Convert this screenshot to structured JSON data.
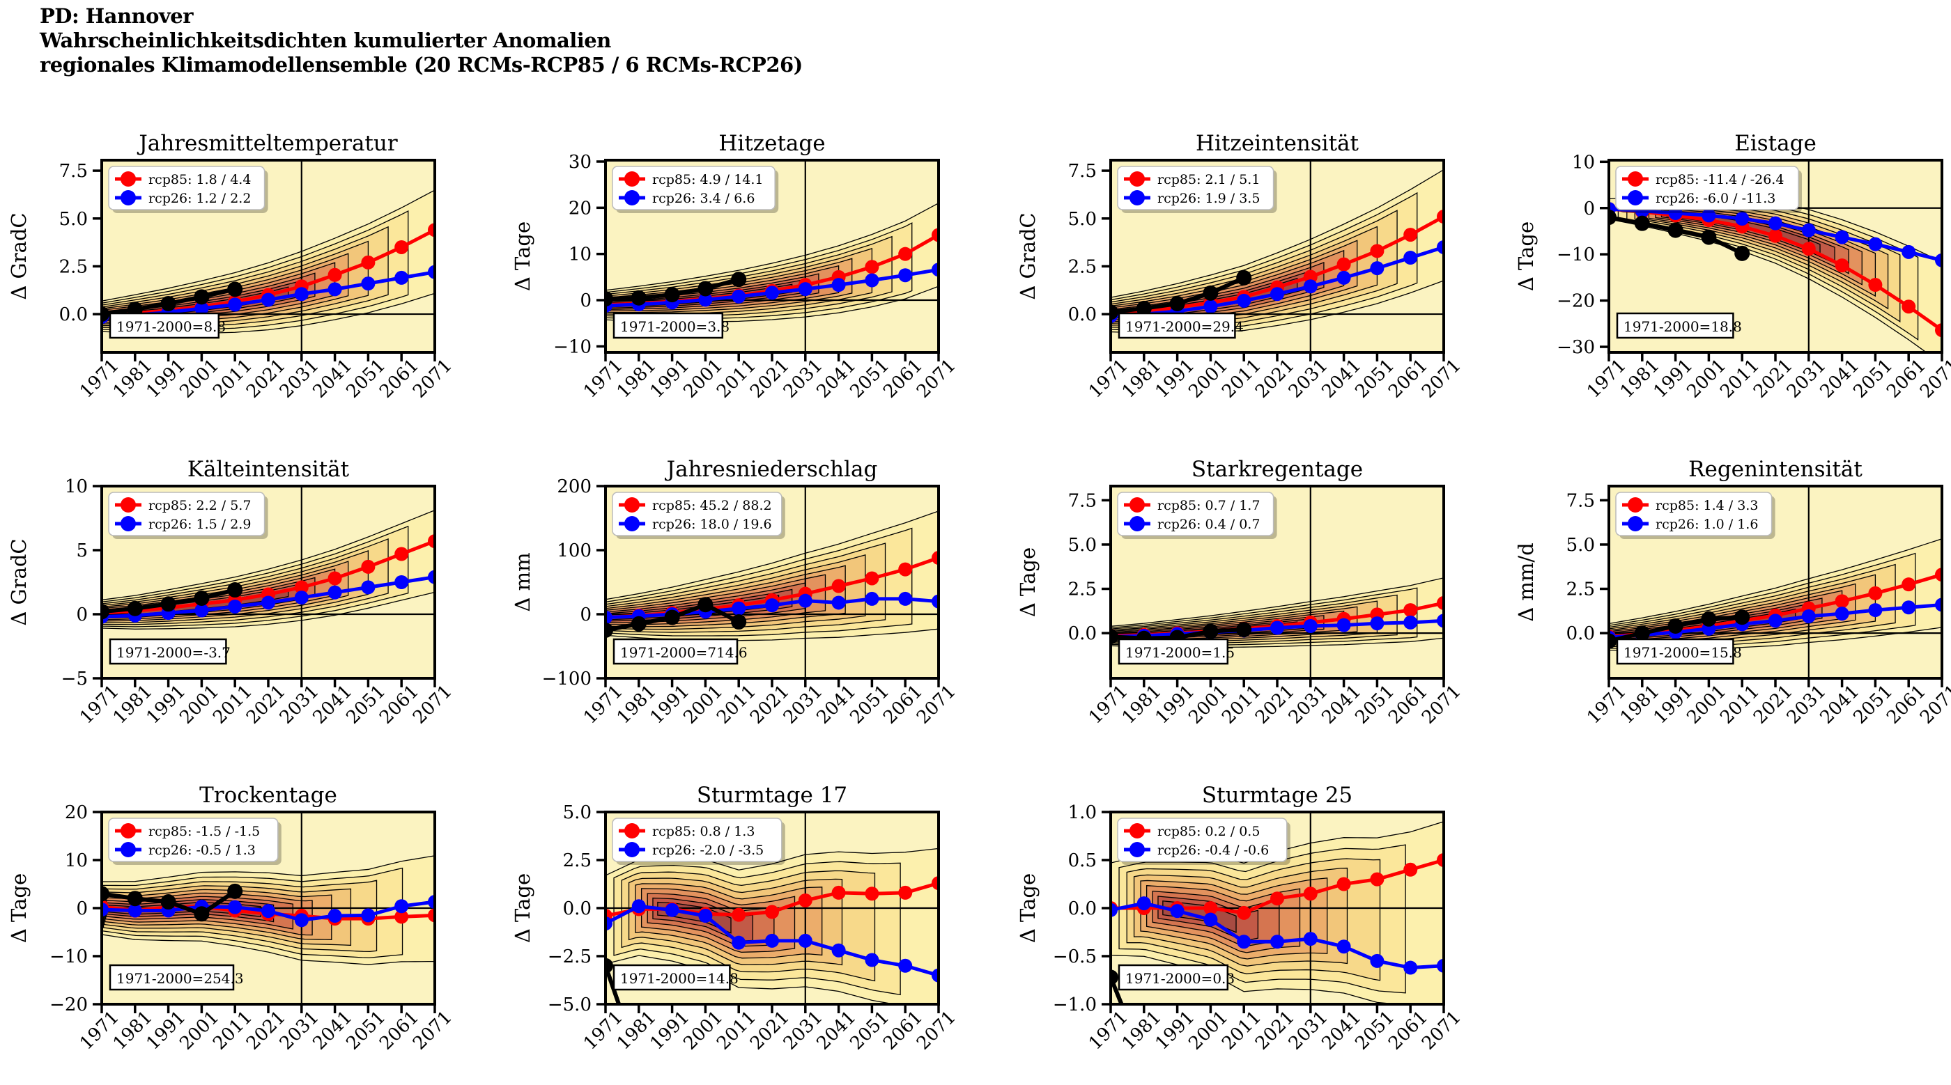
{
  "header": {
    "line1": "PD: Hannover",
    "line2": "Wahrscheinlichkeitsdichten kumulierter Anomalien",
    "line3": "regionales Klimamodellensemble (20 RCMs-RCP85 / 6 RCMs-RCP26)"
  },
  "style": {
    "rcp85_color": "#ff0000",
    "rcp26_color": "#0000ff",
    "historical_color": "#000000",
    "plot_bg": "#fbf3c1",
    "contour_fills": [
      "#fcf0ad",
      "#fbe79b",
      "#f7d98a",
      "#f2c67a",
      "#ecad6b",
      "#e3925e",
      "#d57550",
      "#c25a47",
      "#a84b42"
    ],
    "contour_scales": [
      1,
      0.86,
      0.73,
      0.61,
      0.5,
      0.4,
      0.3,
      0.21,
      0.13
    ]
  },
  "axis": {
    "x_ticks": [
      1971,
      1981,
      1991,
      2001,
      2011,
      2021,
      2031,
      2041,
      2051,
      2061,
      2071
    ],
    "x_range": [
      1971,
      2071
    ],
    "vline_year": 2031,
    "hline_value": 0
  },
  "chart_data": [
    {
      "type": "contour-density + line",
      "title": "Jahresmitteltemperatur",
      "ylabel": "Δ GradC",
      "ylim": [
        -2.0,
        8.05
      ],
      "yticks": [
        0.0,
        2.5,
        5.0,
        7.5
      ],
      "ytick_labels": [
        "0.0",
        "2.5",
        "5.0",
        "7.5"
      ],
      "legend": {
        "rcp85": "rcp85: 1.8 / 4.4",
        "rcp26": "rcp26: 1.2 / 2.2"
      },
      "ref_label": "1971-2000=8.8",
      "series": {
        "rcp85": {
          "y": [
            -0.1,
            0.05,
            0.2,
            0.4,
            0.65,
            1.0,
            1.45,
            2.05,
            2.7,
            3.5,
            4.4
          ]
        },
        "rcp26": {
          "y": [
            -0.15,
            -0.05,
            0.1,
            0.3,
            0.5,
            0.75,
            1.05,
            1.3,
            1.6,
            1.9,
            2.2
          ]
        },
        "historical": {
          "x": [
            1971,
            1981,
            1991,
            2001,
            2011
          ],
          "y": [
            0.0,
            0.25,
            0.55,
            0.9,
            1.3
          ]
        }
      },
      "density": {
        "w0": 0.8,
        "w1": 2.7,
        "startSpread": 0,
        "endK": 0.5,
        "weight": 0.72
      }
    },
    {
      "type": "contour-density + line",
      "title": "Hitzetage",
      "ylabel": "Δ Tage",
      "ylim": [
        -11.3,
        30.3
      ],
      "yticks": [
        -10,
        0,
        10,
        20,
        30
      ],
      "ytick_labels": [
        "−10",
        "0",
        "10",
        "20",
        "30"
      ],
      "legend": {
        "rcp85": "rcp85: 4.9 / 14.1",
        "rcp26": "rcp26: 3.4 / 6.6"
      },
      "ref_label": "1971-2000=3.8",
      "series": {
        "rcp85": {
          "y": [
            -1.0,
            -0.7,
            -0.3,
            0.3,
            1.0,
            2.0,
            3.3,
            5.0,
            7.2,
            10.0,
            14.1
          ]
        },
        "rcp26": {
          "y": [
            -1.2,
            -0.9,
            -0.5,
            0.1,
            0.8,
            1.6,
            2.4,
            3.3,
            4.3,
            5.4,
            6.6
          ]
        },
        "historical": {
          "x": [
            1971,
            1981,
            1991,
            2001,
            2011
          ],
          "y": [
            0.3,
            0.5,
            1.2,
            2.5,
            4.5
          ]
        }
      },
      "density": {
        "w0": 3.2,
        "w1": 9.0,
        "startSpread": 0,
        "endK": 0.5,
        "weight": 0.72
      }
    },
    {
      "type": "contour-density + line",
      "title": "Hitzeintensität",
      "ylabel": "Δ GradC",
      "ylim": [
        -2.0,
        8.05
      ],
      "yticks": [
        0.0,
        2.5,
        5.0,
        7.5
      ],
      "ytick_labels": [
        "0.0",
        "2.5",
        "5.0",
        "7.5"
      ],
      "legend": {
        "rcp85": "rcp85: 2.1 / 5.1",
        "rcp26": "rcp26: 1.9 / 3.5"
      },
      "ref_label": "1971-2000=29.4",
      "series": {
        "rcp85": {
          "y": [
            0.0,
            0.15,
            0.35,
            0.6,
            0.9,
            1.4,
            1.95,
            2.6,
            3.3,
            4.15,
            5.1
          ]
        },
        "rcp26": {
          "y": [
            -0.1,
            0.0,
            0.15,
            0.4,
            0.7,
            1.05,
            1.45,
            1.9,
            2.4,
            2.95,
            3.5
          ]
        },
        "historical": {
          "x": [
            1971,
            1981,
            1991,
            2001,
            2011
          ],
          "y": [
            0.1,
            0.3,
            0.55,
            1.1,
            1.9
          ]
        }
      },
      "density": {
        "w0": 0.9,
        "w1": 2.9,
        "startSpread": 0,
        "endK": 0.5,
        "weight": 0.72
      }
    },
    {
      "type": "contour-density + line",
      "title": "Eistage",
      "ylabel": "Δ Tage",
      "ylim": [
        -31.2,
        10.35
      ],
      "yticks": [
        -30,
        -20,
        -10,
        0,
        10
      ],
      "ytick_labels": [
        "−30",
        "−20",
        "−10",
        "0",
        "10"
      ],
      "legend": {
        "rcp85": "rcp85: -11.4 / -26.4",
        "rcp26": "rcp26: -6.0 / -11.3"
      },
      "ref_label": "1971-2000=18.8",
      "series": {
        "rcp85": {
          "y": [
            -0.2,
            -0.8,
            -1.6,
            -2.6,
            -4.0,
            -6.0,
            -8.8,
            -12.4,
            -16.6,
            -21.3,
            -26.4
          ]
        },
        "rcp26": {
          "y": [
            -0.2,
            -0.6,
            -1.1,
            -1.6,
            -2.3,
            -3.3,
            -4.8,
            -6.3,
            -7.8,
            -9.5,
            -11.3
          ]
        },
        "historical": {
          "x": [
            1971,
            1981,
            1991,
            2001,
            2011
          ],
          "y": [
            -2.0,
            -3.3,
            -4.8,
            -6.3,
            -9.8
          ]
        }
      },
      "density": {
        "w0": 2.2,
        "w1": 11.0,
        "startSpread": 20,
        "endK": 0.6,
        "weight": 0.75
      }
    },
    {
      "type": "contour-density + line",
      "title": "Kälteintensität",
      "ylabel": "Δ GradC",
      "ylim": [
        -5,
        10
      ],
      "yticks": [
        -5,
        0,
        5,
        10
      ],
      "ytick_labels": [
        "−5",
        "0",
        "5",
        "10"
      ],
      "legend": {
        "rcp85": "rcp85: 2.2 / 5.7",
        "rcp26": "rcp26: 1.5 / 2.9"
      },
      "ref_label": "1971-2000=-3.7",
      "series": {
        "rcp85": {
          "y": [
            0.1,
            0.25,
            0.5,
            0.8,
            1.1,
            1.55,
            2.1,
            2.8,
            3.7,
            4.7,
            5.7
          ]
        },
        "rcp26": {
          "y": [
            -0.2,
            -0.1,
            0.1,
            0.3,
            0.6,
            0.9,
            1.3,
            1.7,
            2.1,
            2.5,
            2.9
          ]
        },
        "historical": {
          "x": [
            1971,
            1981,
            1991,
            2001,
            2011
          ],
          "y": [
            0.2,
            0.45,
            0.8,
            1.25,
            1.9
          ]
        }
      },
      "density": {
        "w0": 1.1,
        "w1": 3.2,
        "startSpread": 0,
        "endK": 0.5,
        "weight": 0.72
      }
    },
    {
      "type": "contour-density + line",
      "title": "Jahresniederschlag",
      "ylabel": "Δ mm",
      "ylim": [
        -100,
        200
      ],
      "yticks": [
        -100,
        0,
        100,
        200
      ],
      "ytick_labels": [
        "−100",
        "0",
        "100",
        "200"
      ],
      "legend": {
        "rcp85": "rcp85: 45.2 / 88.2",
        "rcp26": "rcp26: 18.0 / 19.6"
      },
      "ref_label": "1971-2000=714.6",
      "series": {
        "rcp85": {
          "y": [
            -5,
            -2,
            2,
            8,
            14,
            22,
            32,
            44,
            56,
            70,
            88
          ]
        },
        "rcp26": {
          "y": [
            -5,
            -3,
            0,
            4,
            9,
            14,
            21,
            18,
            24,
            24,
            20
          ]
        },
        "historical": {
          "x": [
            1971,
            1981,
            1991,
            2001,
            2011
          ],
          "y": [
            -25,
            -15,
            -5,
            15,
            -12
          ]
        }
      },
      "density": {
        "w0": 28,
        "w1": 92,
        "startSpread": 0,
        "endK": 0.45,
        "weight": 0.72
      }
    },
    {
      "type": "contour-density + line",
      "title": "Starkregentage",
      "ylabel": "Δ Tage",
      "ylim": [
        -2.55,
        8.3
      ],
      "yticks": [
        0.0,
        2.5,
        5.0,
        7.5
      ],
      "ytick_labels": [
        "0.0",
        "2.5",
        "5.0",
        "7.5"
      ],
      "legend": {
        "rcp85": "rcp85: 0.7 / 1.7",
        "rcp26": "rcp26: 0.4 / 0.7"
      },
      "ref_label": "1971-2000=1.5",
      "series": {
        "rcp85": {
          "y": [
            -0.15,
            -0.1,
            0.0,
            0.1,
            0.25,
            0.4,
            0.6,
            0.8,
            1.05,
            1.3,
            1.7
          ]
        },
        "rcp26": {
          "y": [
            -0.2,
            -0.15,
            -0.05,
            0.05,
            0.15,
            0.3,
            0.4,
            0.45,
            0.55,
            0.6,
            0.7
          ]
        },
        "historical": {
          "x": [
            1971,
            1981,
            1991,
            2001,
            2011
          ],
          "y": [
            -0.2,
            -0.3,
            -0.25,
            0.1,
            0.2
          ]
        }
      },
      "density": {
        "w0": 0.55,
        "w1": 1.7,
        "startSpread": 0,
        "endK": 0.5,
        "weight": 0.72
      }
    },
    {
      "type": "contour-density + line",
      "title": "Regenintensität",
      "ylabel": "Δ mm/d",
      "ylim": [
        -2.55,
        8.3
      ],
      "yticks": [
        0.0,
        2.5,
        5.0,
        7.5
      ],
      "ytick_labels": [
        "0.0",
        "2.5",
        "5.0",
        "7.5"
      ],
      "legend": {
        "rcp85": "rcp85: 1.4 / 3.3",
        "rcp26": "rcp26: 1.0 / 1.6"
      },
      "ref_label": "1971-2000=15.8",
      "series": {
        "rcp85": {
          "y": [
            -0.2,
            -0.05,
            0.15,
            0.4,
            0.7,
            1.0,
            1.4,
            1.8,
            2.25,
            2.75,
            3.3
          ]
        },
        "rcp26": {
          "y": [
            -0.25,
            -0.1,
            0.05,
            0.25,
            0.5,
            0.7,
            0.95,
            1.1,
            1.3,
            1.45,
            1.6
          ]
        },
        "historical": {
          "x": [
            1971,
            1981,
            1991,
            2001,
            2011
          ],
          "y": [
            -0.45,
            0.0,
            0.4,
            0.8,
            0.9
          ]
        }
      },
      "density": {
        "w0": 0.75,
        "w1": 2.5,
        "startSpread": 0,
        "endK": 0.5,
        "weight": 0.72
      }
    },
    {
      "type": "contour-density + line",
      "title": "Trockentage",
      "ylabel": "Δ Tage",
      "ylim": [
        -20,
        20
      ],
      "yticks": [
        -20,
        -10,
        0,
        10,
        20
      ],
      "ytick_labels": [
        "−20",
        "−10",
        "0",
        "10",
        "20"
      ],
      "legend": {
        "rcp85": "rcp85: -1.5 / -1.5",
        "rcp26": "rcp26: -0.5 / 1.3"
      },
      "ref_label": "1971-2000=254.3",
      "series": {
        "rcp85": {
          "y": [
            0.3,
            -0.5,
            0.2,
            0.3,
            -0.5,
            -1.2,
            -1.6,
            -2.2,
            -2.2,
            -1.8,
            -1.5
          ]
        },
        "rcp26": {
          "y": [
            -0.3,
            -0.5,
            -0.5,
            0.3,
            0.2,
            -0.6,
            -2.5,
            -1.6,
            -1.5,
            0.4,
            1.3
          ]
        },
        "historical": {
          "x": [
            1971,
            1981,
            1991,
            2001,
            2011
          ],
          "y": [
            3.0,
            2.0,
            1.3,
            -1.2,
            3.5
          ]
        }
      },
      "density": {
        "w0": 5.5,
        "w1": 11.0,
        "startSpread": 2,
        "endK": 0.4,
        "weight": 0.5
      }
    },
    {
      "type": "contour-density + line",
      "title": "Sturmtage 17",
      "ylabel": "Δ Tage",
      "ylim": [
        -5,
        5
      ],
      "yticks": [
        -5.0,
        -2.5,
        0.0,
        2.5,
        5.0
      ],
      "ytick_labels": [
        "−5.0",
        "−2.5",
        "0.0",
        "2.5",
        "5.0"
      ],
      "legend": {
        "rcp85": "rcp85: 0.8 / 1.3",
        "rcp26": "rcp26: -2.0 / -3.5"
      },
      "ref_label": "1971-2000=14.8",
      "series": {
        "rcp85": {
          "y": [
            -0.4,
            -0.05,
            -0.05,
            -0.3,
            -0.35,
            -0.2,
            0.4,
            0.8,
            0.75,
            0.8,
            1.3
          ]
        },
        "rcp26": {
          "y": [
            -0.8,
            0.1,
            -0.1,
            -0.4,
            -1.8,
            -1.7,
            -1.7,
            -2.2,
            -2.7,
            -3.0,
            -3.5
          ]
        },
        "historical": {
          "x": [
            1971,
            1977
          ],
          "y": [
            -3.0,
            -6.0
          ]
        }
      },
      "density": {
        "w0": 2.3,
        "w1": 4.2,
        "startSpread": 18,
        "endK": 0.3,
        "weight": 0.5
      }
    },
    {
      "type": "contour-density + line",
      "title": "Sturmtage 25",
      "ylabel": "Δ Tage",
      "ylim": [
        -1,
        1
      ],
      "yticks": [
        -1.0,
        -0.5,
        0.0,
        0.5,
        1.0
      ],
      "ytick_labels": [
        "−1.0",
        "−0.5",
        "0.0",
        "0.5",
        "1.0"
      ],
      "legend": {
        "rcp85": "rcp85: 0.2 / 0.5",
        "rcp26": "rcp26: -0.4 / -0.6"
      },
      "ref_label": "1971-2000=0.3",
      "series": {
        "rcp85": {
          "y": [
            0.0,
            0.0,
            0.0,
            0.0,
            -0.05,
            0.1,
            0.15,
            0.25,
            0.3,
            0.4,
            0.5
          ]
        },
        "rcp26": {
          "y": [
            -0.02,
            0.05,
            -0.03,
            -0.12,
            -0.35,
            -0.35,
            -0.32,
            -0.4,
            -0.55,
            -0.62,
            -0.6
          ]
        },
        "historical": {
          "x": [
            1971,
            1976
          ],
          "y": [
            -0.72,
            -1.15
          ]
        }
      },
      "density": {
        "w0": 0.48,
        "w1": 0.95,
        "startSpread": 18,
        "endK": 0.3,
        "weight": 0.5
      }
    }
  ]
}
